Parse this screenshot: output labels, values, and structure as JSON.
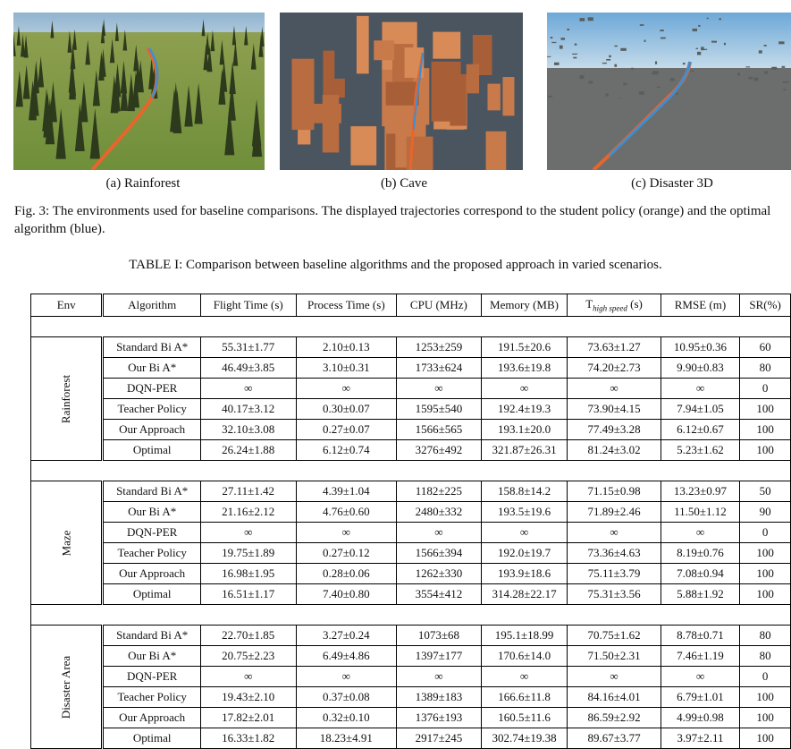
{
  "figures": [
    {
      "caption": "(a) Rainforest"
    },
    {
      "caption": "(b) Cave"
    },
    {
      "caption": "(c) Disaster 3D"
    }
  ],
  "figure_caption": "Fig. 3: The environments used for baseline comparisons. The displayed trajectories correspond to the student policy (orange) and the optimal algorithm (blue).",
  "table_caption": "TABLE I: Comparison between baseline algorithms and the proposed approach in varied scenarios.",
  "headers": [
    "Env",
    "Algorithm",
    "Flight Time (s)",
    "Process Time (s)",
    "CPU (MHz)",
    "Memory (MB)",
    "T_high speed (s)",
    "RMSE (m)",
    "SR(%)"
  ],
  "header_t_main": "T",
  "header_t_sub": "high speed",
  "header_t_unit": " (s)",
  "groups": [
    {
      "env": "Rainforest",
      "rows": [
        [
          "Standard Bi A*",
          "55.31±1.77",
          "2.10±0.13",
          "1253±259",
          "191.5±20.6",
          "73.63±1.27",
          "10.95±0.36",
          "60"
        ],
        [
          "Our Bi A*",
          "46.49±3.85",
          "3.10±0.31",
          "1733±624",
          "193.6±19.8",
          "74.20±2.73",
          "9.90±0.83",
          "80"
        ],
        [
          "DQN-PER",
          "∞",
          "∞",
          "∞",
          "∞",
          "∞",
          "∞",
          "0"
        ],
        [
          "Teacher Policy",
          "40.17±3.12",
          "0.30±0.07",
          "1595±540",
          "192.4±19.3",
          "73.90±4.15",
          "7.94±1.05",
          "100"
        ],
        [
          "Our Approach",
          "32.10±3.08",
          "0.27±0.07",
          "1566±565",
          "193.1±20.0",
          "77.49±3.28",
          "6.12±0.67",
          "100"
        ],
        [
          "Optimal",
          "26.24±1.88",
          "6.12±0.74",
          "3276±492",
          "321.87±26.31",
          "81.24±3.02",
          "5.23±1.62",
          "100"
        ]
      ]
    },
    {
      "env": "Maze",
      "rows": [
        [
          "Standard Bi A*",
          "27.11±1.42",
          "4.39±1.04",
          "1182±225",
          "158.8±14.2",
          "71.15±0.98",
          "13.23±0.97",
          "50"
        ],
        [
          "Our Bi A*",
          "21.16±2.12",
          "4.76±0.60",
          "2480±332",
          "193.5±19.6",
          "71.89±2.46",
          "11.50±1.12",
          "90"
        ],
        [
          "DQN-PER",
          "∞",
          "∞",
          "∞",
          "∞",
          "∞",
          "∞",
          "0"
        ],
        [
          "Teacher Policy",
          "19.75±1.89",
          "0.27±0.12",
          "1566±394",
          "192.0±19.7",
          "73.36±4.63",
          "8.19±0.76",
          "100"
        ],
        [
          "Our Approach",
          "16.98±1.95",
          "0.28±0.06",
          "1262±330",
          "193.9±18.6",
          "75.11±3.79",
          "7.08±0.94",
          "100"
        ],
        [
          "Optimal",
          "16.51±1.17",
          "7.40±0.80",
          "3554±412",
          "314.28±22.17",
          "75.31±3.56",
          "5.88±1.92",
          "100"
        ]
      ]
    },
    {
      "env": "Disaster Area",
      "rows": [
        [
          "Standard Bi A*",
          "22.70±1.85",
          "3.27±0.24",
          "1073±68",
          "195.1±18.99",
          "70.75±1.62",
          "8.78±0.71",
          "80"
        ],
        [
          "Our Bi A*",
          "20.75±2.23",
          "6.49±4.86",
          "1397±177",
          "170.6±14.0",
          "71.50±2.31",
          "7.46±1.19",
          "80"
        ],
        [
          "DQN-PER",
          "∞",
          "∞",
          "∞",
          "∞",
          "∞",
          "∞",
          "0"
        ],
        [
          "Teacher Policy",
          "19.43±2.10",
          "0.37±0.08",
          "1389±183",
          "166.6±11.8",
          "84.16±4.01",
          "6.79±1.01",
          "100"
        ],
        [
          "Our Approach",
          "17.82±2.01",
          "0.32±0.10",
          "1376±193",
          "160.5±11.6",
          "86.59±2.92",
          "4.99±0.98",
          "100"
        ],
        [
          "Optimal",
          "16.33±1.82",
          "18.23±4.91",
          "2917±245",
          "302.74±19.38",
          "89.67±3.77",
          "3.97±2.11",
          "100"
        ]
      ]
    }
  ],
  "bold_cells": {
    "0": [
      [
        0,
        3
      ],
      [
        0,
        4
      ],
      [
        4,
        2
      ],
      [
        5,
        1
      ],
      [
        5,
        5
      ],
      [
        5,
        6
      ],
      [
        3,
        7
      ],
      [
        4,
        7
      ],
      [
        5,
        7
      ]
    ],
    "1": [
      [
        0,
        3
      ],
      [
        0,
        4
      ],
      [
        3,
        2
      ],
      [
        4,
        1
      ],
      [
        4,
        2
      ],
      [
        4,
        5
      ],
      [
        5,
        1
      ],
      [
        5,
        5
      ],
      [
        5,
        6
      ],
      [
        3,
        7
      ],
      [
        4,
        7
      ],
      [
        5,
        7
      ]
    ],
    "2": [
      [
        0,
        3
      ],
      [
        4,
        1
      ],
      [
        4,
        2
      ],
      [
        4,
        4
      ],
      [
        5,
        1
      ],
      [
        5,
        5
      ],
      [
        5,
        6
      ],
      [
        3,
        7
      ],
      [
        4,
        7
      ],
      [
        5,
        7
      ]
    ]
  },
  "colors": {
    "student_trajectory": "#e8652b",
    "optimal_trajectory": "#3a8fd6"
  }
}
